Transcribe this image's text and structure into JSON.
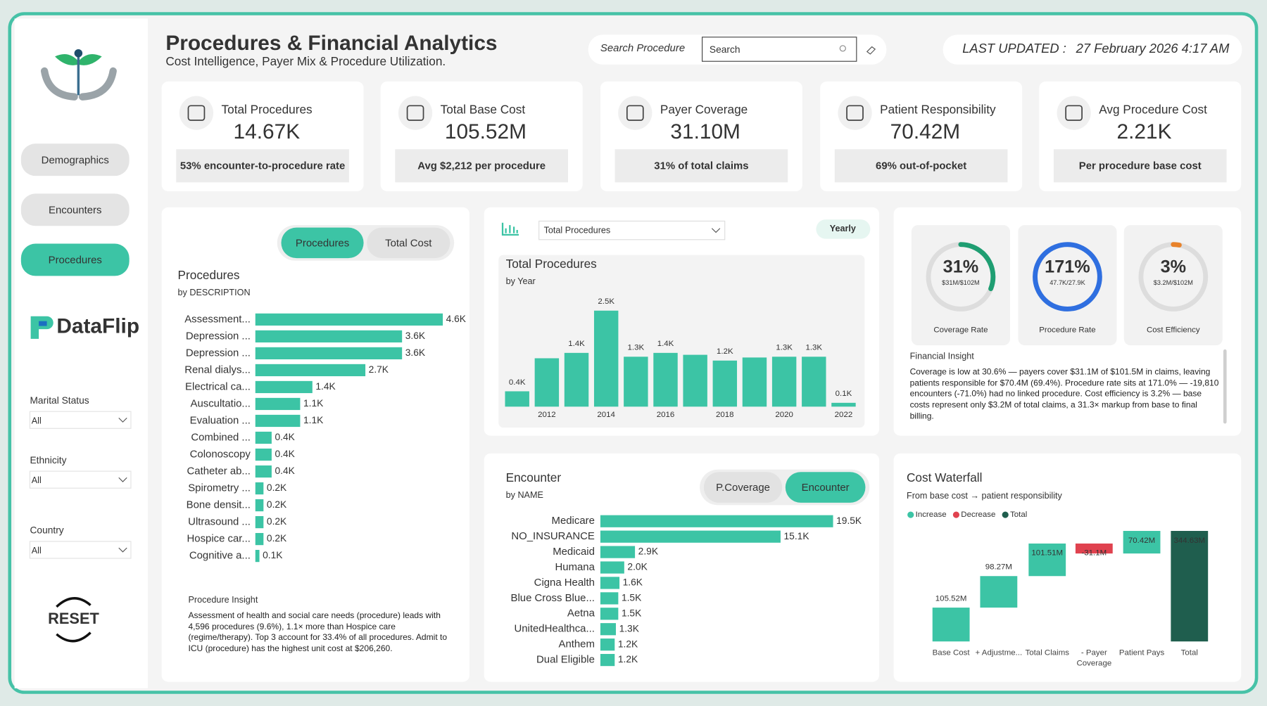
{
  "header": {
    "title_lead": "Procedures &",
    "title_accent": "Financial Analytics",
    "subtitle": "Cost Intelligence, Payer Mix & Procedure Utilization.",
    "search_label": "Search Procedure",
    "search_placeholder": "Search",
    "updated_label": "LAST UPDATED :",
    "updated_value": "27 February 2026 4:17 AM"
  },
  "nav": {
    "items": [
      "Demographics",
      "Encounters",
      "Procedures"
    ],
    "active": 2,
    "brand": "DataFlip",
    "reset": "RESET"
  },
  "filters": [
    {
      "label": "Marital Status",
      "value": "All"
    },
    {
      "label": "Ethnicity",
      "value": "All"
    },
    {
      "label": "Country",
      "value": "All"
    }
  ],
  "kpis": [
    {
      "label": "Total Procedures",
      "value": "14.67K",
      "note": "53% encounter-to-procedure rate"
    },
    {
      "label": "Total Base Cost",
      "value": "105.52M",
      "note": "Avg $2,212 per procedure"
    },
    {
      "label": "Payer Coverage",
      "value": "31.10M",
      "note": "31% of total claims"
    },
    {
      "label": "Patient Responsibility",
      "value": "70.42M",
      "note": "69% out-of-pocket"
    },
    {
      "label": "Avg Procedure Cost",
      "value": "2.21K",
      "note": "Per procedure base cost"
    }
  ],
  "chart_data": [
    {
      "type": "hbar",
      "title": "Procedures",
      "subtitle": "by DESCRIPTION",
      "toggles": [
        "Procedures",
        "Total Cost"
      ],
      "active_toggle": 0,
      "color": "#3cc4a5",
      "categories": [
        "Assessment...",
        "Depression ...",
        "Depression ...",
        "Renal dialys...",
        "Electrical ca...",
        "Auscultatio...",
        "Evaluation ...",
        "Combined ...",
        "Colonoscopy",
        "Catheter ab...",
        "Spirometry ...",
        "Bone densit...",
        "Ultrasound ...",
        "Hospice car...",
        "Cognitive a..."
      ],
      "values": [
        4600,
        3600,
        3600,
        2700,
        1400,
        1100,
        1100,
        400,
        400,
        400,
        200,
        200,
        200,
        200,
        100
      ],
      "value_labels": [
        "4.6K",
        "3.6K",
        "3.6K",
        "2.7K",
        "1.4K",
        "1.1K",
        "1.1K",
        "0.4K",
        "0.4K",
        "0.4K",
        "0.2K",
        "0.2K",
        "0.2K",
        "0.2K",
        "0.1K"
      ],
      "insight_title": "Procedure Insight",
      "insight": "Assessment of health and social care needs (procedure) leads with 4,596 procedures (9.6%), 1.1× more than Hospice care (regime/therapy). Top 3 account for 33.4% of all procedures. Admit to ICU (procedure) has the highest unit cost at $206,260."
    },
    {
      "type": "bar",
      "title": "Total Procedures",
      "subtitle": "by Year",
      "selector": "Total Procedures",
      "period": "Yearly",
      "color": "#3cc4a5",
      "x": [
        2011,
        2012,
        2013,
        2014,
        2015,
        2016,
        2017,
        2018,
        2019,
        2020,
        2021,
        2022
      ],
      "values": [
        400,
        1260,
        1400,
        2500,
        1300,
        1400,
        1350,
        1200,
        1280,
        1300,
        1300,
        100
      ],
      "value_labels": [
        "0.4K",
        null,
        "1.4K",
        "2.5K",
        "1.3K",
        "1.4K",
        null,
        "1.2K",
        null,
        "1.3K",
        "1.3K",
        "0.1K"
      ],
      "xlim": [
        2010.5,
        2022.5
      ],
      "xticks": [
        2012,
        2014,
        2016,
        2018,
        2020,
        2022
      ]
    },
    {
      "type": "gauge",
      "categories": [
        "Coverage Rate",
        "Procedure Rate",
        "Cost Efficiency"
      ],
      "values": [
        31,
        171,
        3
      ],
      "value_labels": [
        "31%",
        "171%",
        "3%"
      ],
      "detail_labels": [
        "$31M/$102M",
        "47.7K/27.9K",
        "$3.2M/$102M"
      ],
      "colors": [
        "#1f9e72",
        "#2f6fe0",
        "#e8822a"
      ],
      "insight_title": "Financial Insight",
      "insight": "Coverage is low at 30.6% — payers cover $31.1M of $101.5M in claims, leaving patients responsible for $70.4M (69.4%). Procedure rate sits at 171.0% — -19,810 encounters (-71.0%) had no linked procedure. Cost efficiency is 3.2% — base costs represent only $3.2M of total claims, a 31.3× markup from base to final billing."
    },
    {
      "type": "hbar",
      "title": "Encounter",
      "subtitle": "by NAME",
      "toggles": [
        "P.Coverage",
        "Encounter"
      ],
      "active_toggle": 1,
      "color": "#3cc4a5",
      "categories": [
        "Medicare",
        "NO_INSURANCE",
        "Medicaid",
        "Humana",
        "Cigna Health",
        "Blue Cross Blue...",
        "Aetna",
        "UnitedHealthca...",
        "Anthem",
        "Dual Eligible"
      ],
      "values": [
        19500,
        15100,
        2900,
        2000,
        1600,
        1500,
        1500,
        1300,
        1200,
        1200
      ],
      "value_labels": [
        "19.5K",
        "15.1K",
        "2.9K",
        "2.0K",
        "1.6K",
        "1.5K",
        "1.5K",
        "1.3K",
        "1.2K",
        "1.2K"
      ]
    },
    {
      "type": "waterfall",
      "title": "Cost Waterfall",
      "subtitle": "From base cost → patient responsibility",
      "legend": [
        {
          "name": "Increase",
          "color": "#3cc4a5"
        },
        {
          "name": "Decrease",
          "color": "#e0424f"
        },
        {
          "name": "Total",
          "color": "#1f5e4e"
        }
      ],
      "categories": [
        "Base Cost",
        "+ Adjustme...",
        "Total Claims",
        "- Payer Coverage",
        "Patient Pays",
        "Total"
      ],
      "values": [
        105.52,
        98.27,
        101.51,
        -31.1,
        70.42,
        344.63
      ],
      "value_labels": [
        "105.52M",
        "98.27M",
        "101.51M",
        "-31.1M",
        "70.42M",
        "344.63M"
      ],
      "kinds": [
        "Increase",
        "Increase",
        "Increase",
        "Decrease",
        "Increase",
        "Total"
      ]
    }
  ]
}
